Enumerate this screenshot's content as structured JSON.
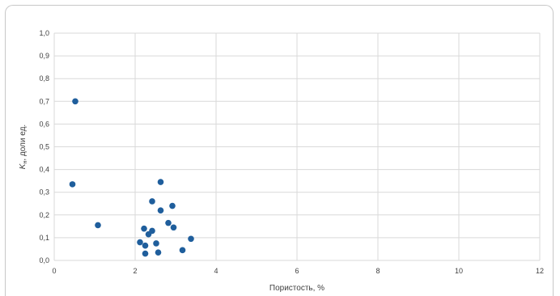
{
  "chart_data": {
    "type": "scatter",
    "xlabel": "Пористость, %",
    "ylabel": {
      "main": "K",
      "subscript": "н",
      "rest": ", доли ед."
    },
    "xlim": [
      0,
      12
    ],
    "ylim": [
      0,
      1.0
    ],
    "x_ticks": [
      "0",
      "2",
      "4",
      "6",
      "8",
      "10",
      "12"
    ],
    "y_ticks": [
      "0,0",
      "0,1",
      "0,2",
      "0,3",
      "0,4",
      "0,5",
      "0,6",
      "0,7",
      "0,8",
      "0,9",
      "1,0"
    ],
    "grid": true,
    "marker_color": "#1f5e9c",
    "points": [
      {
        "x": 0.52,
        "y": 0.7
      },
      {
        "x": 0.45,
        "y": 0.335
      },
      {
        "x": 1.08,
        "y": 0.155
      },
      {
        "x": 2.12,
        "y": 0.08
      },
      {
        "x": 2.22,
        "y": 0.14
      },
      {
        "x": 2.25,
        "y": 0.065
      },
      {
        "x": 2.25,
        "y": 0.03
      },
      {
        "x": 2.33,
        "y": 0.115
      },
      {
        "x": 2.42,
        "y": 0.13
      },
      {
        "x": 2.42,
        "y": 0.26
      },
      {
        "x": 2.52,
        "y": 0.075
      },
      {
        "x": 2.57,
        "y": 0.035
      },
      {
        "x": 2.63,
        "y": 0.345
      },
      {
        "x": 2.63,
        "y": 0.22
      },
      {
        "x": 2.82,
        "y": 0.165
      },
      {
        "x": 2.92,
        "y": 0.24
      },
      {
        "x": 2.95,
        "y": 0.145
      },
      {
        "x": 3.17,
        "y": 0.045
      },
      {
        "x": 3.38,
        "y": 0.095
      }
    ]
  }
}
